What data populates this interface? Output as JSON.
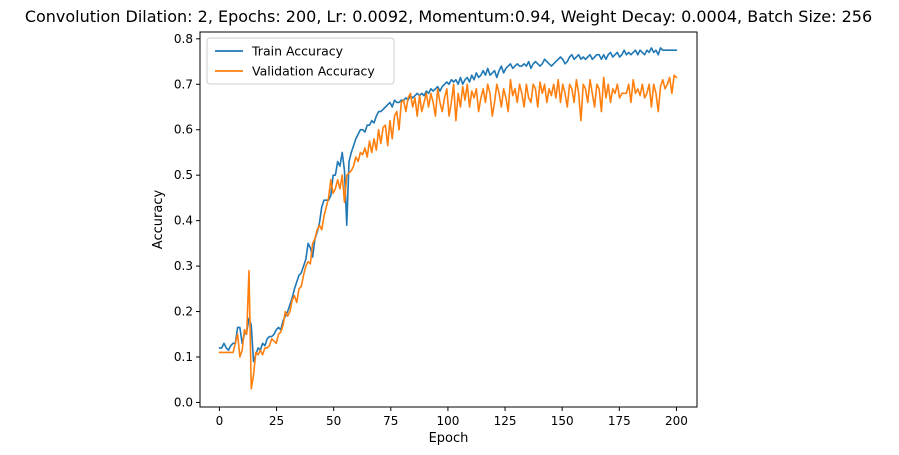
{
  "chart_data": {
    "type": "line",
    "title": "Convolution Dilation: 2, Epochs: 200, Lr: 0.0092, Momentum:0.94, Weight Decay: 0.0004, Batch Size: 256",
    "xlabel": "Epoch",
    "ylabel": "Accuracy",
    "xlim": [
      -8.5,
      209
    ],
    "ylim": [
      -0.01,
      0.815
    ],
    "xticks": [
      0,
      25,
      50,
      75,
      100,
      125,
      150,
      175,
      200
    ],
    "yticks": [
      0.0,
      0.1,
      0.2,
      0.3,
      0.4,
      0.5,
      0.6,
      0.7,
      0.8
    ],
    "xtick_labels": [
      "0",
      "25",
      "50",
      "75",
      "100",
      "125",
      "150",
      "175",
      "200"
    ],
    "ytick_labels": [
      "0.0",
      "0.1",
      "0.2",
      "0.3",
      "0.4",
      "0.5",
      "0.6",
      "0.7",
      "0.8"
    ],
    "grid": false,
    "legend_position": "top-left",
    "series": [
      {
        "name": "Train Accuracy",
        "color": "#1f77b4",
        "values": [
          0.12,
          0.12,
          0.13,
          0.12,
          0.115,
          0.125,
          0.13,
          0.13,
          0.165,
          0.165,
          0.13,
          0.15,
          0.155,
          0.185,
          0.17,
          0.09,
          0.105,
          0.12,
          0.115,
          0.13,
          0.125,
          0.14,
          0.145,
          0.145,
          0.15,
          0.16,
          0.165,
          0.16,
          0.18,
          0.19,
          0.2,
          0.215,
          0.23,
          0.25,
          0.265,
          0.28,
          0.285,
          0.3,
          0.315,
          0.35,
          0.34,
          0.32,
          0.36,
          0.375,
          0.395,
          0.43,
          0.445,
          0.445,
          0.445,
          0.455,
          0.5,
          0.5,
          0.53,
          0.52,
          0.55,
          0.51,
          0.39,
          0.53,
          0.55,
          0.565,
          0.58,
          0.59,
          0.6,
          0.6,
          0.595,
          0.61,
          0.61,
          0.62,
          0.615,
          0.63,
          0.64,
          0.64,
          0.645,
          0.65,
          0.655,
          0.66,
          0.65,
          0.665,
          0.66,
          0.66,
          0.665,
          0.665,
          0.67,
          0.665,
          0.675,
          0.67,
          0.675,
          0.68,
          0.675,
          0.68,
          0.675,
          0.685,
          0.68,
          0.69,
          0.685,
          0.69,
          0.695,
          0.685,
          0.695,
          0.7,
          0.705,
          0.7,
          0.71,
          0.705,
          0.71,
          0.7,
          0.715,
          0.7,
          0.71,
          0.715,
          0.705,
          0.72,
          0.71,
          0.725,
          0.715,
          0.72,
          0.73,
          0.72,
          0.735,
          0.72,
          0.725,
          0.73,
          0.715,
          0.73,
          0.74,
          0.725,
          0.735,
          0.74,
          0.745,
          0.735,
          0.74,
          0.745,
          0.74,
          0.74,
          0.745,
          0.74,
          0.75,
          0.735,
          0.745,
          0.75,
          0.745,
          0.74,
          0.745,
          0.755,
          0.75,
          0.745,
          0.74,
          0.745,
          0.75,
          0.755,
          0.76,
          0.755,
          0.745,
          0.75,
          0.76,
          0.765,
          0.755,
          0.76,
          0.765,
          0.755,
          0.76,
          0.755,
          0.76,
          0.765,
          0.755,
          0.76,
          0.765,
          0.765,
          0.755,
          0.765,
          0.755,
          0.765,
          0.77,
          0.76,
          0.765,
          0.77,
          0.76,
          0.765,
          0.775,
          0.765,
          0.77,
          0.765,
          0.77,
          0.775,
          0.765,
          0.775,
          0.77,
          0.765,
          0.775,
          0.77,
          0.78,
          0.77,
          0.775,
          0.765,
          0.78,
          0.775,
          0.775,
          0.775,
          0.775,
          0.775,
          0.775,
          0.775
        ]
      },
      {
        "name": "Validation Accuracy",
        "color": "#ff7f0e",
        "values": [
          0.11,
          0.11,
          0.11,
          0.11,
          0.11,
          0.11,
          0.11,
          0.13,
          0.15,
          0.1,
          0.115,
          0.16,
          0.15,
          0.29,
          0.03,
          0.06,
          0.11,
          0.105,
          0.115,
          0.105,
          0.12,
          0.12,
          0.125,
          0.14,
          0.135,
          0.13,
          0.15,
          0.155,
          0.17,
          0.2,
          0.19,
          0.2,
          0.225,
          0.235,
          0.22,
          0.25,
          0.255,
          0.28,
          0.3,
          0.31,
          0.305,
          0.35,
          0.36,
          0.38,
          0.39,
          0.38,
          0.41,
          0.43,
          0.45,
          0.49,
          0.46,
          0.47,
          0.49,
          0.47,
          0.5,
          0.44,
          0.5,
          0.505,
          0.51,
          0.52,
          0.54,
          0.53,
          0.55,
          0.545,
          0.56,
          0.54,
          0.575,
          0.55,
          0.58,
          0.555,
          0.6,
          0.57,
          0.605,
          0.61,
          0.565,
          0.62,
          0.58,
          0.63,
          0.64,
          0.6,
          0.66,
          0.665,
          0.64,
          0.67,
          0.68,
          0.65,
          0.67,
          0.63,
          0.675,
          0.64,
          0.66,
          0.68,
          0.65,
          0.68,
          0.66,
          0.63,
          0.69,
          0.66,
          0.64,
          0.67,
          0.69,
          0.63,
          0.66,
          0.7,
          0.62,
          0.68,
          0.65,
          0.695,
          0.665,
          0.7,
          0.65,
          0.685,
          0.67,
          0.69,
          0.64,
          0.67,
          0.69,
          0.66,
          0.7,
          0.68,
          0.63,
          0.66,
          0.7,
          0.68,
          0.65,
          0.69,
          0.67,
          0.64,
          0.71,
          0.675,
          0.69,
          0.66,
          0.7,
          0.68,
          0.65,
          0.7,
          0.67,
          0.66,
          0.7,
          0.69,
          0.65,
          0.705,
          0.68,
          0.7,
          0.66,
          0.69,
          0.675,
          0.7,
          0.67,
          0.71,
          0.66,
          0.7,
          0.68,
          0.65,
          0.7,
          0.69,
          0.66,
          0.71,
          0.68,
          0.62,
          0.7,
          0.69,
          0.66,
          0.71,
          0.68,
          0.65,
          0.7,
          0.69,
          0.64,
          0.715,
          0.67,
          0.7,
          0.66,
          0.69,
          0.68,
          0.7,
          0.67,
          0.68,
          0.68,
          0.68,
          0.7,
          0.66,
          0.71,
          0.68,
          0.69,
          0.675,
          0.7,
          0.67,
          0.68,
          0.7,
          0.65,
          0.7,
          0.68,
          0.64,
          0.695,
          0.71,
          0.69,
          0.7,
          0.715,
          0.68,
          0.72,
          0.715
        ]
      }
    ]
  }
}
